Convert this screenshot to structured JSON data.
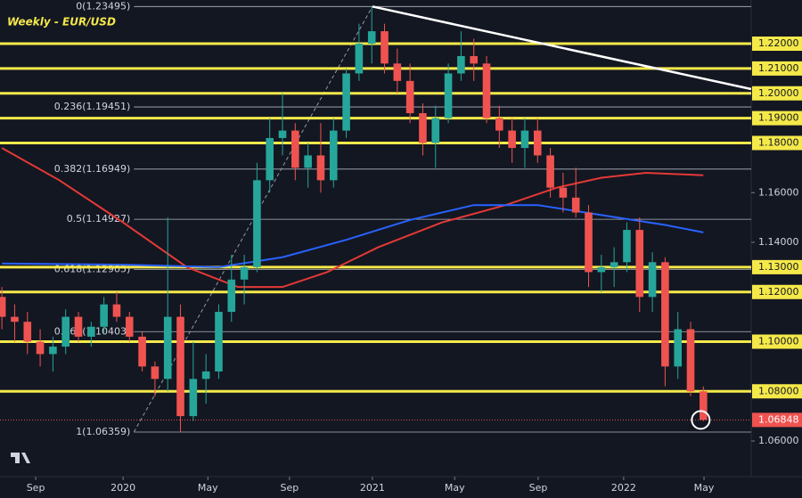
{
  "chart_data": {
    "type": "candlestick",
    "title": "Weekly - EUR/USD",
    "x": [
      -19,
      -17,
      -15,
      -13,
      -11,
      -9,
      -7,
      -5,
      -3,
      -1,
      1,
      3,
      5,
      7,
      9,
      11,
      13,
      15,
      17,
      19,
      21,
      23,
      25,
      27,
      29,
      31,
      33,
      35,
      37,
      39,
      41,
      43,
      45,
      47,
      49,
      51,
      53,
      55,
      57,
      59,
      61,
      63,
      65,
      67,
      69,
      71,
      73,
      75,
      77,
      79,
      81,
      83,
      85,
      87,
      89,
      91
    ],
    "open": [
      1.118,
      1.11,
      1.108,
      1.1,
      1.095,
      1.098,
      1.11,
      1.102,
      1.106,
      1.115,
      1.11,
      1.102,
      1.09,
      1.085,
      1.11,
      1.07,
      1.085,
      1.088,
      1.112,
      1.125,
      1.13,
      1.165,
      1.182,
      1.185,
      1.17,
      1.175,
      1.165,
      1.185,
      1.208,
      1.22,
      1.225,
      1.212,
      1.205,
      1.192,
      1.18,
      1.19,
      1.208,
      1.215,
      1.212,
      1.19,
      1.185,
      1.178,
      1.185,
      1.175,
      1.162,
      1.158,
      1.152,
      1.128,
      1.13,
      1.132,
      1.145,
      1.118,
      1.132,
      1.09,
      1.105,
      1.08
    ],
    "high": [
      1.122,
      1.115,
      1.112,
      1.105,
      1.102,
      1.113,
      1.112,
      1.108,
      1.118,
      1.12,
      1.112,
      1.104,
      1.092,
      1.15,
      1.115,
      1.1,
      1.095,
      1.115,
      1.135,
      1.135,
      1.172,
      1.19,
      1.2,
      1.188,
      1.18,
      1.188,
      1.19,
      1.21,
      1.228,
      1.23495,
      1.228,
      1.218,
      1.212,
      1.196,
      1.195,
      1.212,
      1.225,
      1.222,
      1.215,
      1.195,
      1.19,
      1.19,
      1.19,
      1.178,
      1.168,
      1.17,
      1.155,
      1.135,
      1.138,
      1.148,
      1.15,
      1.136,
      1.134,
      1.112,
      1.108,
      1.082
    ],
    "low": [
      1.105,
      1.1,
      1.095,
      1.09,
      1.088,
      1.095,
      1.1,
      1.098,
      1.103,
      1.108,
      1.1,
      1.088,
      1.078,
      1.08,
      1.06359,
      1.068,
      1.075,
      1.085,
      1.108,
      1.115,
      1.128,
      1.16,
      1.175,
      1.165,
      1.162,
      1.16,
      1.162,
      1.182,
      1.205,
      1.212,
      1.208,
      1.2,
      1.188,
      1.175,
      1.17,
      1.188,
      1.205,
      1.205,
      1.188,
      1.178,
      1.172,
      1.17,
      1.172,
      1.158,
      1.152,
      1.15,
      1.122,
      1.12,
      1.122,
      1.128,
      1.112,
      1.112,
      1.082,
      1.085,
      1.078,
      1.068
    ],
    "close": [
      1.11,
      1.108,
      1.1,
      1.095,
      1.098,
      1.11,
      1.102,
      1.106,
      1.115,
      1.11,
      1.102,
      1.09,
      1.085,
      1.11,
      1.07,
      1.085,
      1.088,
      1.112,
      1.125,
      1.13,
      1.165,
      1.182,
      1.185,
      1.17,
      1.175,
      1.165,
      1.185,
      1.208,
      1.22,
      1.225,
      1.212,
      1.205,
      1.192,
      1.18,
      1.19,
      1.208,
      1.215,
      1.212,
      1.19,
      1.185,
      1.178,
      1.185,
      1.175,
      1.162,
      1.158,
      1.152,
      1.128,
      1.13,
      1.132,
      1.145,
      1.118,
      1.132,
      1.09,
      1.105,
      1.08,
      1.06848
    ],
    "up_color": "#26a69a",
    "down_color": "#ef5350",
    "xlim": [
      -19.3,
      98.5
    ],
    "xticks": [
      {
        "value": -13.7,
        "label": "Sep"
      },
      {
        "value": 0,
        "label": "2020"
      },
      {
        "value": 13.3,
        "label": "May"
      },
      {
        "value": 26.1,
        "label": "Sep"
      },
      {
        "value": 39.1,
        "label": "2021"
      },
      {
        "value": 52,
        "label": "May"
      },
      {
        "value": 65.1,
        "label": "Sep"
      },
      {
        "value": 78.5,
        "label": "2022"
      },
      {
        "value": 91.1,
        "label": "May"
      }
    ],
    "ylim": [
      1.04565,
      1.23758
    ],
    "yticks": [
      {
        "value": 1.22,
        "label": "1.22000"
      },
      {
        "value": 1.21,
        "label": "1.21000"
      },
      {
        "value": 1.2,
        "label": "1.20000"
      },
      {
        "value": 1.19,
        "label": "1.19000"
      },
      {
        "value": 1.18,
        "label": "1.18000"
      },
      {
        "value": 1.16,
        "label": "1.16000"
      },
      {
        "value": 1.14,
        "label": "1.14000"
      },
      {
        "value": 1.13,
        "label": "1.13000"
      },
      {
        "value": 1.12,
        "label": "1.12000"
      },
      {
        "value": 1.1,
        "label": "1.10000"
      },
      {
        "value": 1.08,
        "label": "1.08000"
      },
      {
        "value": 1.06,
        "label": "1.06000"
      }
    ],
    "levels": [
      1.22,
      1.21,
      1.2,
      1.19,
      1.18,
      1.13,
      1.12,
      1.1,
      1.08
    ],
    "level_color": "#f5e94a",
    "fib": [
      {
        "value": 1.23495,
        "label": "0(1.23495)"
      },
      {
        "value": 1.19451,
        "label": "0.236(1.19451)"
      },
      {
        "value": 1.16949,
        "label": "0.382(1.16949)"
      },
      {
        "value": 1.14927,
        "label": "0.5(1.14927)"
      },
      {
        "value": 1.12905,
        "label": "0.618(1.12905)"
      },
      {
        "value": 1.10403,
        "label": "0.764(1.10403)"
      },
      {
        "value": 1.06359,
        "label": "1(1.06359)"
      }
    ],
    "last_price": {
      "value": 1.06848,
      "label": "1.06848"
    },
    "moving_averages": [
      {
        "color": "#e53935",
        "x": [
          -19,
          -10,
          0,
          10,
          18,
          25,
          32,
          40,
          50,
          60,
          68,
          75,
          82,
          91
        ],
        "values": [
          1.178,
          1.165,
          1.148,
          1.13,
          1.122,
          1.122,
          1.128,
          1.138,
          1.148,
          1.155,
          1.162,
          1.166,
          1.168,
          1.167
        ]
      },
      {
        "color": "#2962ff",
        "x": [
          -19,
          0,
          15,
          25,
          35,
          45,
          55,
          65,
          75,
          85,
          91
        ],
        "values": [
          1.1315,
          1.131,
          1.13,
          1.134,
          1.141,
          1.149,
          1.155,
          1.155,
          1.151,
          1.147,
          1.144
        ]
      }
    ],
    "trendline": {
      "x": [
        39.1,
        98.5
      ],
      "y": [
        1.23495,
        1.2017
      ]
    },
    "fib_anchor": {
      "x": [
        1.7,
        39.1
      ],
      "y": [
        1.06359,
        1.23495
      ]
    }
  }
}
